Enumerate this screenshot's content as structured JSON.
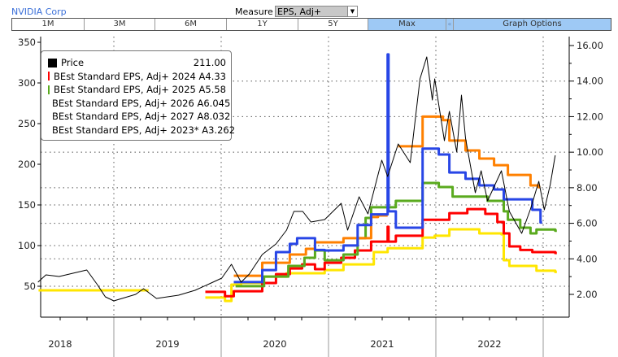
{
  "header": {
    "title": "NVIDIA Corp",
    "measure_label": "Measure",
    "measure_value": "EPS, Adj+"
  },
  "tabs": [
    {
      "label": "1M"
    },
    {
      "label": "3M"
    },
    {
      "label": "6M"
    },
    {
      "label": "1Y"
    },
    {
      "label": "5Y"
    },
    {
      "label": "Max",
      "active": true
    },
    {
      "label": ""
    },
    {
      "label": "Graph Options",
      "active": true
    }
  ],
  "chart_data": {
    "type": "line",
    "x_range": [
      "2018-04-20",
      "2023-03-10"
    ],
    "x_ticks": [
      "2018",
      "2019",
      "2020",
      "2021",
      "2022"
    ],
    "y_left": {
      "range": [
        0,
        360
      ],
      "ticks": [
        50,
        100,
        150,
        200,
        250,
        300,
        350
      ]
    },
    "y_right": {
      "range": [
        1.5,
        16.3
      ],
      "ticks": [
        "2.00",
        "4.00",
        "6.00",
        "8.00",
        "10.00",
        "12.00",
        "14.00",
        "16.00"
      ]
    },
    "grid": "dotted",
    "legend_placement": "top-left",
    "series": [
      {
        "name": "Price",
        "value": "211.00",
        "color": "#000000",
        "axis": "left",
        "step": false,
        "points": [
          [
            "2018-04-18",
            55
          ],
          [
            "2018-05-15",
            64
          ],
          [
            "2018-06-29",
            62
          ],
          [
            "2018-10-01",
            70
          ],
          [
            "2018-11-06",
            52
          ],
          [
            "2018-12-03",
            37
          ],
          [
            "2019-01-01",
            32
          ],
          [
            "2019-03-16",
            40
          ],
          [
            "2019-04-12",
            47
          ],
          [
            "2019-05-26",
            35
          ],
          [
            "2019-08-09",
            39
          ],
          [
            "2019-10-04",
            45
          ],
          [
            "2019-11-28",
            54
          ],
          [
            "2020-01-03",
            60
          ],
          [
            "2020-02-05",
            77
          ],
          [
            "2020-03-09",
            55
          ],
          [
            "2020-04-06",
            65
          ],
          [
            "2020-05-20",
            89
          ],
          [
            "2020-07-06",
            102
          ],
          [
            "2020-08-11",
            119
          ],
          [
            "2020-09-05",
            142
          ],
          [
            "2020-10-05",
            142
          ],
          [
            "2020-11-02",
            129
          ],
          [
            "2020-12-19",
            132
          ],
          [
            "2021-02-13",
            152
          ],
          [
            "2021-03-07",
            119
          ],
          [
            "2021-04-15",
            160
          ],
          [
            "2021-05-15",
            139
          ],
          [
            "2021-07-01",
            205
          ],
          [
            "2021-07-21",
            185
          ],
          [
            "2021-08-26",
            225
          ],
          [
            "2021-10-06",
            202
          ],
          [
            "2021-11-08",
            305
          ],
          [
            "2021-12-01",
            332
          ],
          [
            "2021-12-20",
            279
          ],
          [
            "2021-12-28",
            305
          ],
          [
            "2022-01-30",
            229
          ],
          [
            "2022-02-16",
            265
          ],
          [
            "2022-03-13",
            215
          ],
          [
            "2022-03-29",
            285
          ],
          [
            "2022-04-12",
            232
          ],
          [
            "2022-05-15",
            165
          ],
          [
            "2022-06-04",
            192
          ],
          [
            "2022-06-26",
            155
          ],
          [
            "2022-08-12",
            192
          ],
          [
            "2022-09-08",
            142
          ],
          [
            "2022-10-20",
            115
          ],
          [
            "2022-11-19",
            145
          ],
          [
            "2022-12-17",
            179
          ],
          [
            "2023-01-05",
            144
          ],
          [
            "2023-01-25",
            175
          ],
          [
            "2023-02-11",
            211
          ]
        ]
      },
      {
        "name": "BEst Standard EPS, Adj+ 2024 A",
        "value": "4.33",
        "color": "#ff0000",
        "axis": "right",
        "step": true,
        "points": [
          [
            "2019-11-08",
            2.14
          ],
          [
            "2020-01-14",
            1.9
          ],
          [
            "2020-02-13",
            2.18
          ],
          [
            "2020-05-20",
            2.64
          ],
          [
            "2020-07-06",
            3.14
          ],
          [
            "2020-08-22",
            3.46
          ],
          [
            "2020-10-03",
            3.69
          ],
          [
            "2020-11-16",
            3.42
          ],
          [
            "2020-12-19",
            3.78
          ],
          [
            "2021-02-13",
            4.06
          ],
          [
            "2021-04-01",
            4.47
          ],
          [
            "2021-05-26",
            4.97
          ],
          [
            "2021-07-21",
            5.8
          ],
          [
            "2021-07-24",
            4.97
          ],
          [
            "2021-08-18",
            5.3
          ],
          [
            "2021-11-17",
            6.2
          ],
          [
            "2022-02-16",
            6.57
          ],
          [
            "2022-04-18",
            6.8
          ],
          [
            "2022-06-18",
            6.53
          ],
          [
            "2022-07-29",
            6.07
          ],
          [
            "2022-08-20",
            5.43
          ],
          [
            "2022-09-08",
            4.7
          ],
          [
            "2022-10-15",
            4.5
          ],
          [
            "2022-11-25",
            4.38
          ],
          [
            "2023-02-11",
            4.33
          ]
        ]
      },
      {
        "name": "BEst Standard EPS, Adj+ 2025 A",
        "value": "5.58",
        "color": "#5aaa1e",
        "axis": "right",
        "step": true,
        "points": [
          [
            "2020-02-19",
            2.46
          ],
          [
            "2020-05-26",
            3.0
          ],
          [
            "2020-08-17",
            3.6
          ],
          [
            "2020-10-11",
            4.06
          ],
          [
            "2020-11-16",
            4.47
          ],
          [
            "2020-12-19",
            3.92
          ],
          [
            "2021-02-21",
            4.24
          ],
          [
            "2021-04-10",
            5.16
          ],
          [
            "2021-05-07",
            6.3
          ],
          [
            "2021-05-26",
            6.9
          ],
          [
            "2021-08-18",
            7.26
          ],
          [
            "2021-11-17",
            8.27
          ],
          [
            "2022-01-11",
            8.04
          ],
          [
            "2022-02-27",
            7.5
          ],
          [
            "2022-06-26",
            7.26
          ],
          [
            "2022-08-20",
            6.67
          ],
          [
            "2022-09-03",
            6.2
          ],
          [
            "2022-10-15",
            5.75
          ],
          [
            "2022-11-19",
            5.43
          ],
          [
            "2022-12-09",
            5.65
          ],
          [
            "2023-02-11",
            5.58
          ]
        ]
      },
      {
        "name": "BEst Standard EPS, Adj+ 2026 A",
        "value": "6.045",
        "color": "#2846e6",
        "axis": "right",
        "step": true,
        "points": [
          [
            "2020-02-13",
            2.69
          ],
          [
            "2020-05-20",
            3.37
          ],
          [
            "2020-07-06",
            4.38
          ],
          [
            "2020-08-22",
            4.84
          ],
          [
            "2020-09-16",
            5.16
          ],
          [
            "2020-11-16",
            4.5
          ],
          [
            "2020-12-19",
            4.47
          ],
          [
            "2021-02-21",
            4.75
          ],
          [
            "2021-04-10",
            5.9
          ],
          [
            "2021-05-26",
            6.5
          ],
          [
            "2021-07-21",
            15.5
          ],
          [
            "2021-07-24",
            6.67
          ],
          [
            "2021-08-18",
            5.75
          ],
          [
            "2021-11-17",
            10.2
          ],
          [
            "2022-01-11",
            9.87
          ],
          [
            "2022-02-16",
            8.86
          ],
          [
            "2022-04-12",
            8.5
          ],
          [
            "2022-05-29",
            8.13
          ],
          [
            "2022-07-18",
            7.9
          ],
          [
            "2022-08-20",
            7.35
          ],
          [
            "2022-11-25",
            6.76
          ],
          [
            "2022-12-23",
            6.045
          ]
        ]
      },
      {
        "name": "BEst Standard EPS, Adj+ 2027 A",
        "value": "8.032",
        "color": "#ff8000",
        "axis": "right",
        "step": true,
        "points": [
          [
            "2020-02-13",
            3.05
          ],
          [
            "2020-05-20",
            3.78
          ],
          [
            "2020-08-22",
            4.24
          ],
          [
            "2020-10-16",
            4.56
          ],
          [
            "2020-11-16",
            4.93
          ],
          [
            "2021-02-21",
            5.16
          ],
          [
            "2021-05-26",
            6.35
          ],
          [
            "2021-06-18",
            6.44
          ],
          [
            "2021-07-21",
            null
          ],
          [
            "2021-08-26",
            10.33
          ],
          [
            "2021-11-17",
            12.0
          ],
          [
            "2022-01-25",
            11.8
          ],
          [
            "2022-02-16",
            10.65
          ],
          [
            "2022-04-12",
            10.1
          ],
          [
            "2022-05-29",
            9.64
          ],
          [
            "2022-07-18",
            9.27
          ],
          [
            "2022-09-03",
            8.72
          ],
          [
            "2022-11-19",
            8.13
          ],
          [
            "2022-12-17",
            8.032
          ]
        ]
      },
      {
        "name": "BEst Standard EPS, Adj+ 2023* A",
        "value": "3.262",
        "color": "#ffe600",
        "axis": "right",
        "step": true,
        "points": [
          [
            "2018-04-20",
            2.23
          ],
          [
            "2019-04-29",
            null
          ],
          [
            "2019-11-08",
            1.82
          ],
          [
            "2020-01-14",
            1.63
          ],
          [
            "2020-02-05",
            2.55
          ],
          [
            "2020-03-09",
            2.64
          ],
          [
            "2020-05-20",
            3.0
          ],
          [
            "2020-08-11",
            3.19
          ],
          [
            "2020-12-19",
            3.37
          ],
          [
            "2021-02-21",
            3.69
          ],
          [
            "2021-06-04",
            4.38
          ],
          [
            "2021-07-21",
            4.6
          ],
          [
            "2021-11-17",
            5.2
          ],
          [
            "2021-12-28",
            5.3
          ],
          [
            "2022-02-16",
            5.66
          ],
          [
            "2022-05-29",
            5.43
          ],
          [
            "2022-08-12",
            5.38
          ],
          [
            "2022-08-20",
            3.92
          ],
          [
            "2022-09-08",
            3.6
          ],
          [
            "2022-12-09",
            3.33
          ],
          [
            "2023-02-11",
            3.262
          ]
        ]
      }
    ]
  }
}
